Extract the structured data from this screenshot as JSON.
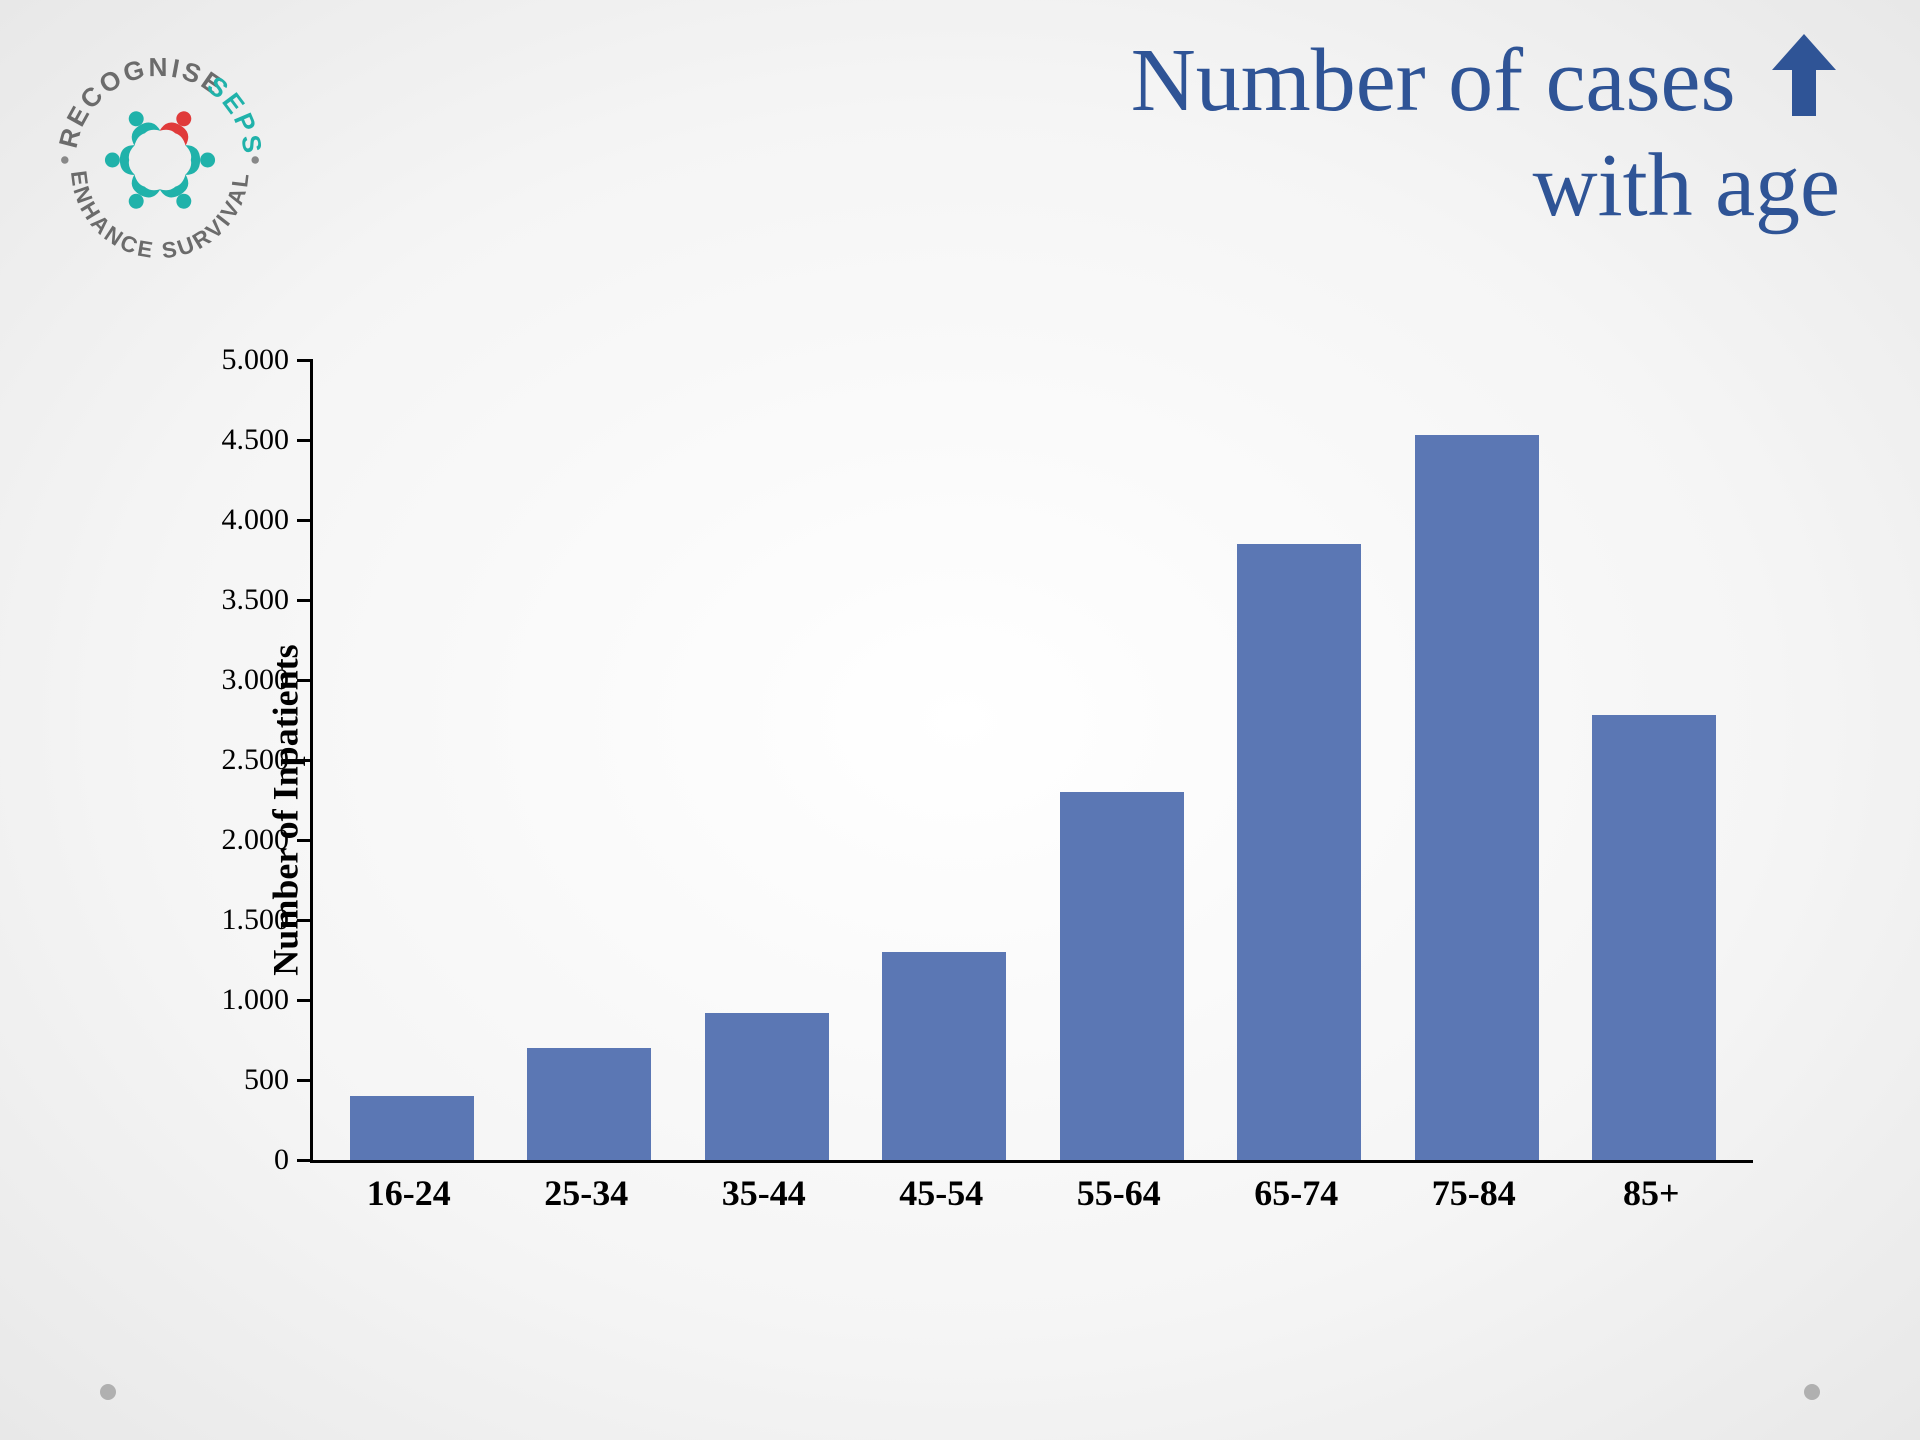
{
  "logo": {
    "top_text_1": "RECOGNISE",
    "top_text_2": "SEPSIS",
    "bottom_text": "ENHANCE SURVIVAL",
    "top_text_1_color": "#6b6b6b",
    "top_text_2_color": "#20b2aa",
    "bottom_text_color": "#6b6b6b",
    "primary_icon_color": "#20b2aa",
    "accent_icon_color": "#e03a3a",
    "dot_color": "#888888",
    "font_size_pt": 22
  },
  "title": {
    "line1": "Number of cases",
    "line2": "with age",
    "color": "#2f5496",
    "arrow_color": "#2f5496",
    "font_size_pt": 68,
    "font_family": "Georgia, 'Times New Roman', serif"
  },
  "chart": {
    "type": "bar",
    "y_axis_label": "Number of Inpatients",
    "categories": [
      "16-24",
      "25-34",
      "35-44",
      "45-54",
      "55-64",
      "65-74",
      "75-84",
      "85+"
    ],
    "values": [
      400,
      700,
      920,
      1300,
      2300,
      3850,
      4530,
      2780
    ],
    "bar_color": "#5b77b4",
    "axis_color": "#000000",
    "ylim": [
      0,
      5000
    ],
    "y_ticks": [
      0,
      500,
      1000,
      1500,
      2000,
      2500,
      3000,
      3500,
      4000,
      4500,
      5000
    ],
    "y_tick_labels": [
      "0",
      "500",
      "1.000",
      "1.500",
      "2.000",
      "2.500",
      "3.000",
      "3.500",
      "4.000",
      "4.500",
      "5.000"
    ],
    "y_tick_fontsize_pt": 22,
    "x_tick_fontsize_pt": 27,
    "x_tick_fontweight": "700",
    "y_label_fontsize_pt": 27,
    "y_label_fontweight": "700",
    "bar_width_ratio": 0.7,
    "background_color": "transparent"
  },
  "decorative_dots": {
    "color": "#b0b0b0"
  }
}
